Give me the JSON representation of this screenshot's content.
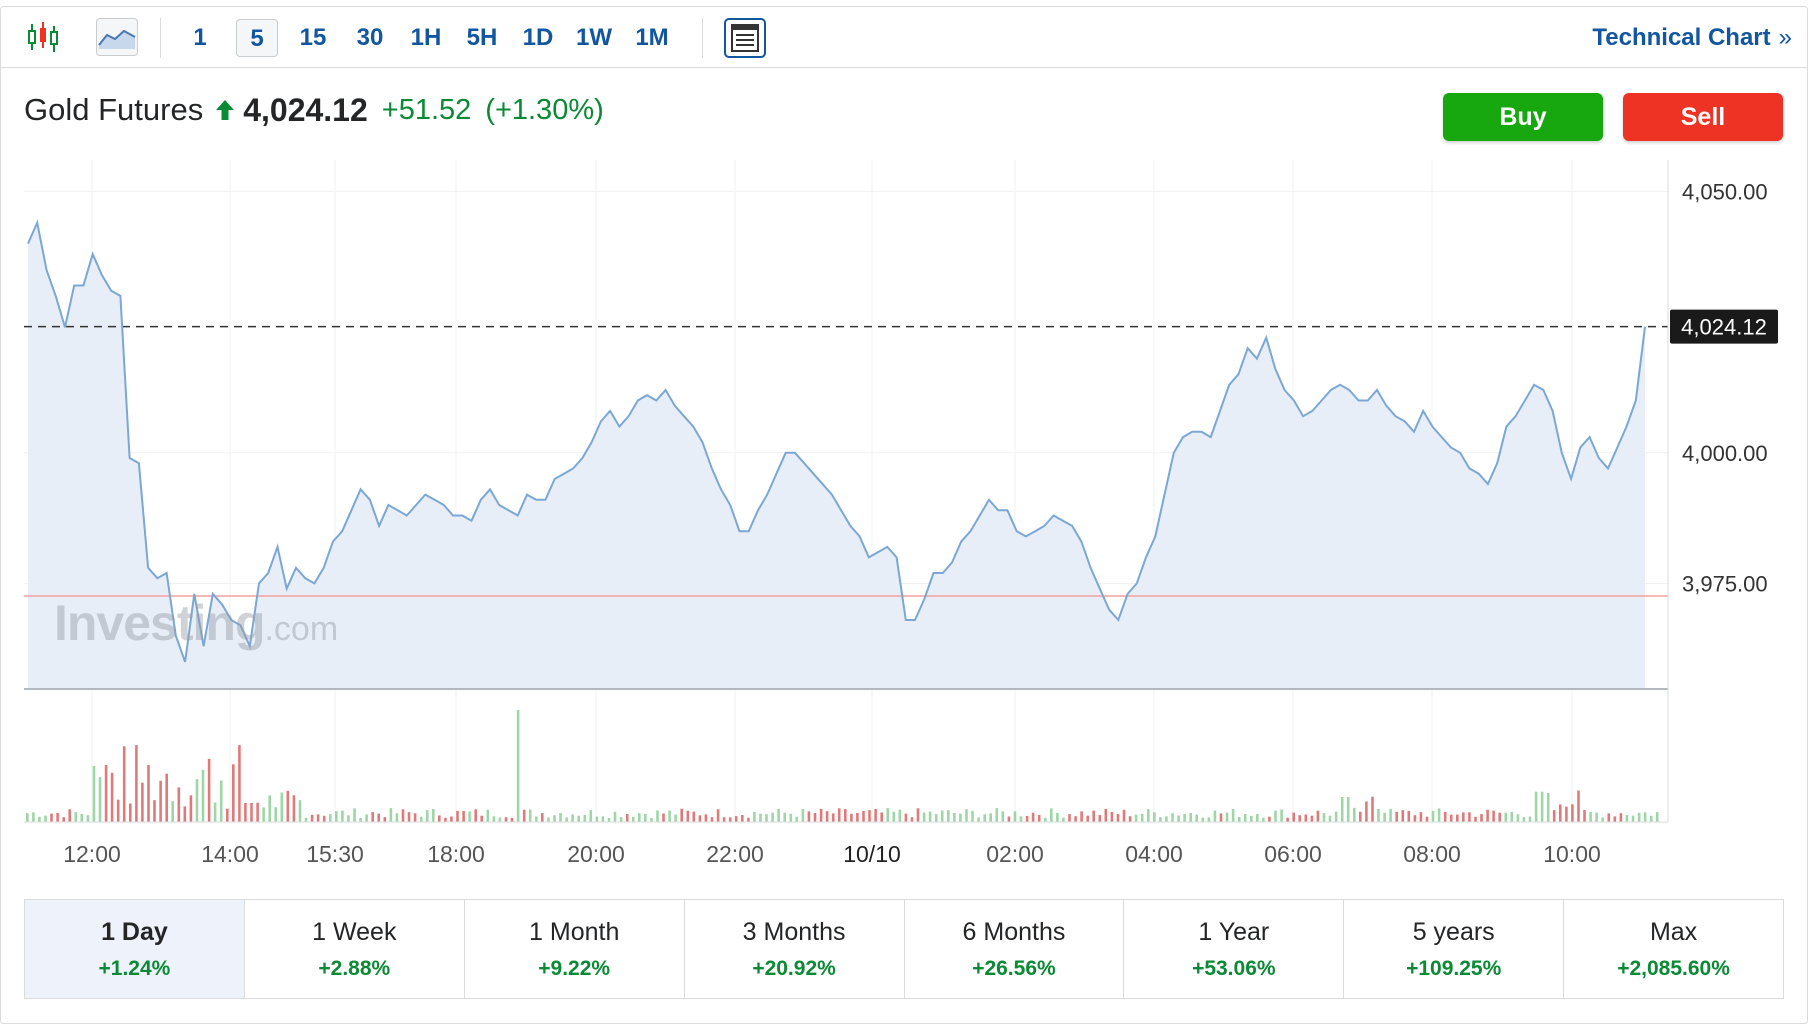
{
  "toolbar": {
    "candles_icon": "candlestick-icon",
    "area_icon": "area-chart-icon",
    "intervals": [
      "1",
      "5",
      "15",
      "30",
      "1H",
      "5H",
      "1D",
      "1W",
      "1M"
    ],
    "active_interval": "5",
    "layout_icon": "layout-icon",
    "technical_chart": "Technical Chart",
    "technical_chart_chevron": "»"
  },
  "instrument": {
    "name": "Gold Futures",
    "price": "4,024.12",
    "change": "+51.52",
    "change_pct": "(+1.30%)",
    "direction": "up"
  },
  "actions": {
    "buy": "Buy",
    "sell": "Sell"
  },
  "watermark": {
    "brand": "Investing",
    "suffix": ".com"
  },
  "colors": {
    "up": "#0a8a34",
    "buy": "#16a80e",
    "sell": "#ee3324",
    "line": "#7ba7d4",
    "area": "#e8eef7",
    "link": "#1256a0"
  },
  "chart_data": {
    "type": "area",
    "y_ticks": [
      "4,050.00",
      "4,000.00",
      "3,975.00"
    ],
    "y_tick_values": [
      4050,
      4000,
      3975
    ],
    "ylim": [
      3955,
      4056
    ],
    "current_price_label": "4,024.12",
    "current_price": 4024.12,
    "prev_close": 3972.6,
    "x_ticks": [
      "12:00",
      "14:00",
      "15:30",
      "18:00",
      "20:00",
      "22:00",
      "10/10",
      "02:00",
      "04:00",
      "06:00",
      "08:00",
      "10:00"
    ],
    "x_tick_bold": "10/10",
    "series_y": [
      4040,
      4044,
      4035,
      4030,
      4024,
      4032,
      4032,
      4038,
      4034,
      4031,
      4030,
      3999,
      3998,
      3978,
      3976,
      3977,
      3965,
      3960,
      3973,
      3963,
      3973,
      3971,
      3968,
      3967,
      3963,
      3975,
      3977,
      3982,
      3974,
      3978,
      3976,
      3975,
      3978,
      3983,
      3985,
      3989,
      3993,
      3991,
      3986,
      3990,
      3989,
      3988,
      3990,
      3992,
      3991,
      3990,
      3988,
      3988,
      3987,
      3991,
      3993,
      3990,
      3989,
      3988,
      3992,
      3991,
      3991,
      3995,
      3996,
      3997,
      3999,
      4002,
      4006,
      4008,
      4005,
      4007,
      4010,
      4011,
      4010,
      4012,
      4009,
      4007,
      4005,
      4002,
      3997,
      3993,
      3990,
      3985,
      3985,
      3989,
      3992,
      3996,
      4000,
      4000,
      3998,
      3996,
      3994,
      3992,
      3989,
      3986,
      3984,
      3980,
      3981,
      3982,
      3980,
      3968,
      3968,
      3972,
      3977,
      3977,
      3979,
      3983,
      3985,
      3988,
      3991,
      3989,
      3989,
      3985,
      3984,
      3985,
      3986,
      3988,
      3987,
      3986,
      3983,
      3978,
      3974,
      3970,
      3968,
      3973,
      3975,
      3980,
      3984,
      3992,
      4000,
      4003,
      4004,
      4004,
      4003,
      4008,
      4013,
      4015,
      4020,
      4018,
      4022,
      4016,
      4012,
      4010,
      4007,
      4008,
      4010,
      4012,
      4013,
      4012,
      4010,
      4010,
      4012,
      4009,
      4007,
      4006,
      4004,
      4008,
      4005,
      4003,
      4001,
      4000,
      3997,
      3996,
      3994,
      3998,
      4005,
      4007,
      4010,
      4013,
      4012,
      4008,
      4000,
      3995,
      4001,
      4003,
      3999,
      3997,
      4001,
      4005,
      4010,
      4024.12
    ],
    "volume_buckets": 270,
    "volume_note": ""
  },
  "periods": [
    {
      "label": "1 Day",
      "change": "+1.24%",
      "active": true
    },
    {
      "label": "1 Week",
      "change": "+2.88%"
    },
    {
      "label": "1 Month",
      "change": "+9.22%"
    },
    {
      "label": "3 Months",
      "change": "+20.92%"
    },
    {
      "label": "6 Months",
      "change": "+26.56%"
    },
    {
      "label": "1 Year",
      "change": "+53.06%"
    },
    {
      "label": "5 years",
      "change": "+109.25%"
    },
    {
      "label": "Max",
      "change": "+2,085.60%"
    }
  ]
}
